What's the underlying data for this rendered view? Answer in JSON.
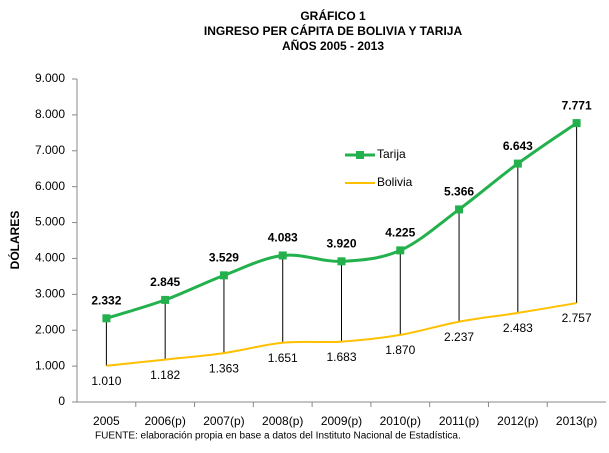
{
  "chart_data": {
    "type": "line",
    "title": [
      "GRÁFICO 1",
      "INGRESO PER CÁPITA DE BOLIVIA Y TARIJA",
      "AÑOS 2005 - 2013"
    ],
    "y_label": "DÓLARES",
    "source": "FUENTE: elaboración propia en base a datos del Instituto Nacional de Estadística.",
    "categories": [
      "2005",
      "2006(p)",
      "2007(p)",
      "2008(p)",
      "2009(p)",
      "2010(p)",
      "2011(p)",
      "2012(p)",
      "2013(p)"
    ],
    "series": [
      {
        "name": "Tarija",
        "color": "#22b14c",
        "markers": true,
        "values": [
          2332,
          2845,
          3529,
          4083,
          3920,
          4225,
          5366,
          6643,
          7771
        ],
        "value_labels": [
          "2.332",
          "2.845",
          "3.529",
          "4.083",
          "3.920",
          "4.225",
          "5.366",
          "6.643",
          "7.771"
        ]
      },
      {
        "name": "Bolivia",
        "color": "#ffc000",
        "markers": false,
        "values": [
          1010,
          1182,
          1363,
          1651,
          1683,
          1870,
          2237,
          2483,
          2757
        ],
        "value_labels": [
          "1.010",
          "1.182",
          "1.363",
          "1.651",
          "1.683",
          "1.870",
          "2.237",
          "2.483",
          "2.757"
        ]
      }
    ],
    "ylim": [
      0,
      9000
    ],
    "yticks": [
      0,
      {
        "value": 1000,
        "label": "1.000"
      },
      {
        "value": 2000,
        "label": "2.000"
      },
      {
        "value": 3000,
        "label": "3.000"
      },
      {
        "value": 4000,
        "label": "4.000"
      },
      {
        "value": 5000,
        "label": "5.000"
      },
      {
        "value": 6000,
        "label": "6.000"
      },
      {
        "value": 7000,
        "label": "7.000"
      },
      {
        "value": 8000,
        "label": "8.000"
      },
      {
        "value": 9000,
        "label": "9.000"
      }
    ],
    "smooth": true,
    "drop_lines": true,
    "grid": false,
    "legend": "center"
  }
}
